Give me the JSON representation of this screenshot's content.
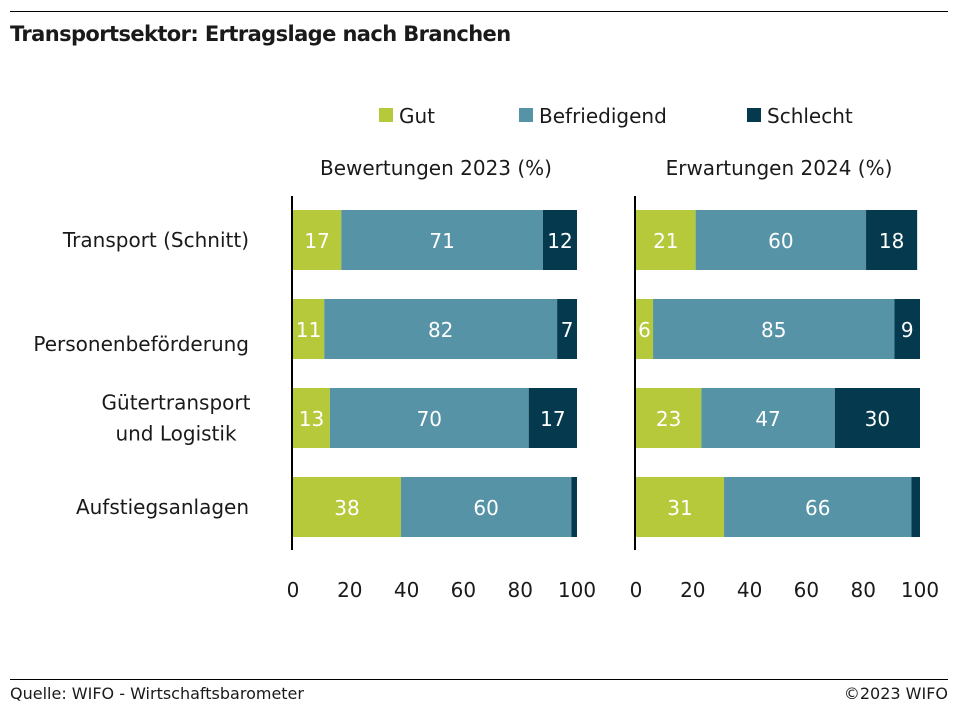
{
  "title": "Transportsektor: Ertragslage nach Branchen",
  "source": "Quelle: WIFO - Wirtschaftsbarometer",
  "copyright": "©2023 WIFO",
  "colors": {
    "gut": "#b5c93a",
    "befriedigend": "#5793a6",
    "schlecht": "#053a4e",
    "axis": "#000000",
    "label_light": "#ffffff"
  },
  "chart_data": {
    "type": "bar",
    "orientation": "horizontal",
    "stacked": true,
    "legend_position": "top",
    "categories": [
      "Transport (Schnitt)",
      "Personenbeförderung",
      "Gütertransport\nund Logistik",
      "Aufstiegsanlagen"
    ],
    "series_names": [
      "Gut",
      "Befriedigend",
      "Schlecht"
    ],
    "xlim": [
      0,
      100
    ],
    "xticks": [
      "0",
      "20",
      "40",
      "60",
      "80",
      "100"
    ],
    "panels": [
      {
        "title": "Bewertungen 2023 (%)",
        "series": [
          {
            "name": "Gut",
            "values": [
              17,
              11,
              13,
              38
            ],
            "labels": [
              "17",
              "11",
              "13",
              "38"
            ]
          },
          {
            "name": "Befriedigend",
            "values": [
              71,
              82,
              70,
              60
            ],
            "labels": [
              "71",
              "82",
              "70",
              "60"
            ]
          },
          {
            "name": "Schlecht",
            "values": [
              12,
              7,
              17,
              2
            ],
            "labels": [
              "12",
              "7",
              "17",
              ""
            ]
          }
        ]
      },
      {
        "title": "Erwartungen 2024 (%)",
        "series": [
          {
            "name": "Gut",
            "values": [
              21,
              6,
              23,
              31
            ],
            "labels": [
              "21",
              "6",
              "23",
              "31"
            ]
          },
          {
            "name": "Befriedigend",
            "values": [
              60,
              85,
              47,
              66
            ],
            "labels": [
              "60",
              "85",
              "47",
              "66"
            ]
          },
          {
            "name": "Schlecht",
            "values": [
              18,
              9,
              30,
              3
            ],
            "labels": [
              "18",
              "9",
              "30",
              ""
            ]
          }
        ]
      }
    ]
  }
}
